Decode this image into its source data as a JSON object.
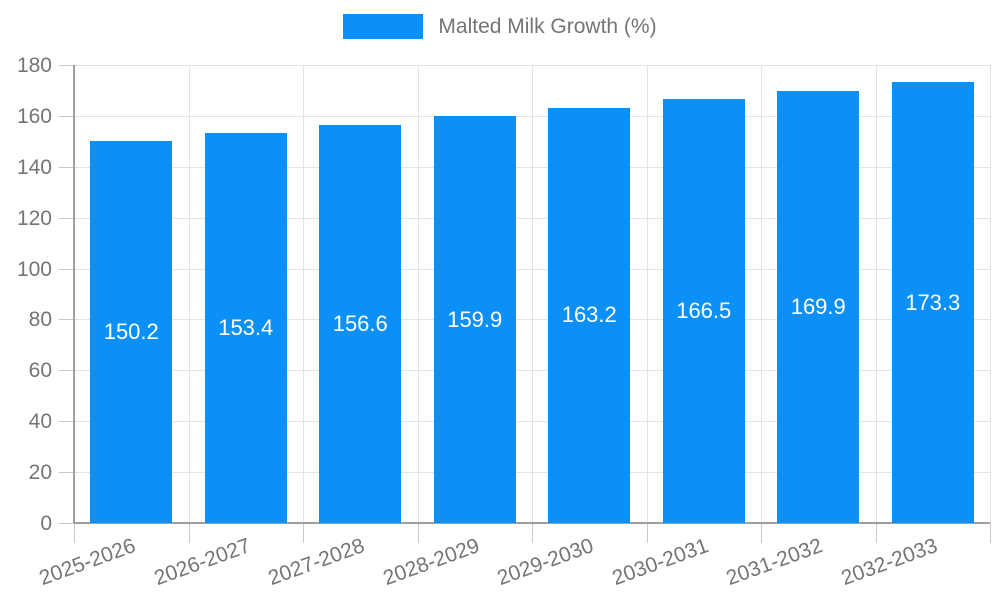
{
  "legend": {
    "label": "Malted Milk Growth (%)"
  },
  "colors": {
    "bar": "#0a90f6",
    "axis_line": "#9e9e9e",
    "gridline": "#e4e4e4",
    "tick": "#c9c9c9",
    "axis_text": "#757575",
    "legend_text": "#757575",
    "value_label": "#ffffff",
    "background": "#ffffff"
  },
  "chart_data": {
    "type": "bar",
    "title": "Malted Milk Growth (%)",
    "categories": [
      "2025-2026",
      "2026-2027",
      "2027-2028",
      "2028-2029",
      "2029-2030",
      "2030-2031",
      "2031-2032",
      "2032-2033"
    ],
    "values": [
      150.2,
      153.4,
      156.6,
      159.9,
      163.2,
      166.5,
      169.9,
      173.3
    ],
    "value_labels": [
      "150.2",
      "153.4",
      "156.6",
      "159.9",
      "163.2",
      "166.5",
      "169.9",
      "173.3"
    ],
    "ylim": [
      0,
      180
    ],
    "yticks": [
      0,
      20,
      40,
      60,
      80,
      100,
      120,
      140,
      160,
      180
    ],
    "ytick_labels": [
      "0",
      "20",
      "40",
      "60",
      "80",
      "100",
      "120",
      "140",
      "160",
      "180"
    ],
    "xlabel": "",
    "ylabel": "",
    "grid": true,
    "legend_position": "top-center",
    "x_label_rotation_deg": -20
  }
}
